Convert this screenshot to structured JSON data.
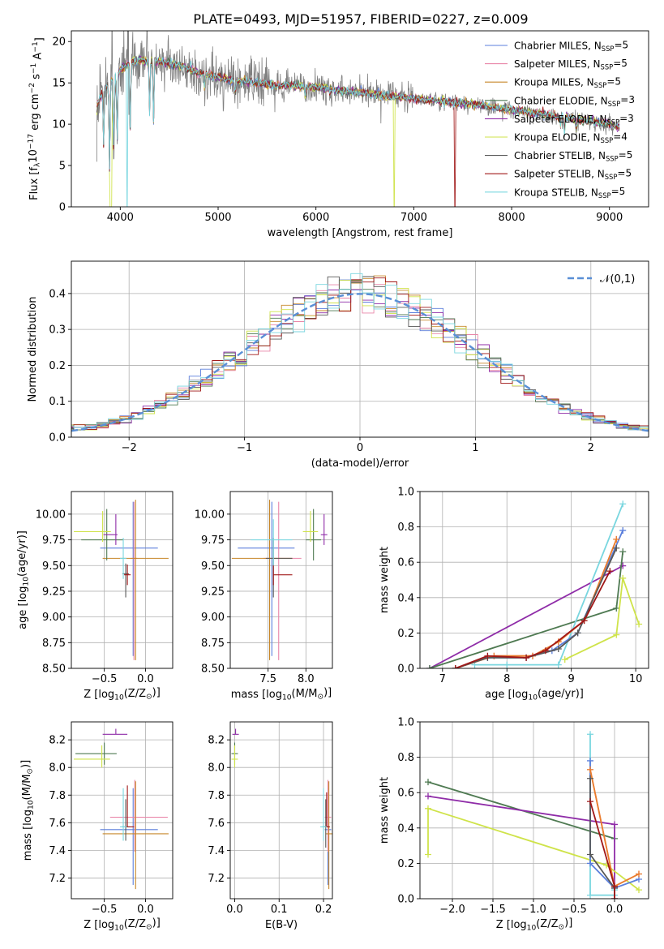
{
  "figure": {
    "title": "PLATE=0493, MJD=51957, FIBERID=0227, z=0.009"
  },
  "colors": {
    "Chabrier MILES": "#5b7fdc",
    "Salpeter MILES": "#e985a8",
    "Kroupa MILES": "#c7872a",
    "Chabrier ELODIE": "#4f7a52",
    "Salpeter ELODIE": "#8f2ca8",
    "Kroupa ELODIE": "#cfe34a",
    "Chabrier STELIB": "#585858",
    "Salpeter STELIB": "#a01818",
    "Kroupa STELIB": "#79d6df",
    "observed": "#808080",
    "gaussian": "#5a8fd6",
    "orange": "#ea7f2c"
  },
  "chart_data": [
    {
      "id": "spectrum",
      "type": "line",
      "xlabel": "wavelength [Angstrom, rest frame]",
      "ylabel": "Flux [f$_\\lambda$10$^{-17}$ erg cm$^{-2}$ s$^{-1}$ A$^{-1}$]",
      "xlim": [
        3500,
        9400
      ],
      "ylim": [
        0,
        21.3
      ],
      "xticks": [
        4000,
        5000,
        6000,
        7000,
        8000,
        9000
      ],
      "yticks": [
        0,
        5,
        10,
        15,
        20
      ],
      "legend_position": "top-right",
      "legend": [
        {
          "model": "Chabrier MILES",
          "n": "5"
        },
        {
          "model": "Salpeter MILES",
          "n": "5"
        },
        {
          "model": "Kroupa MILES",
          "n": "5"
        },
        {
          "model": "Chabrier ELODIE",
          "n": "3"
        },
        {
          "model": "Salpeter ELODIE",
          "n": "3"
        },
        {
          "model": "Kroupa ELODIE",
          "n": "4"
        },
        {
          "model": "Chabrier STELIB",
          "n": "5"
        },
        {
          "model": "Salpeter STELIB",
          "n": "5"
        },
        {
          "model": "Kroupa STELIB",
          "n": "5"
        }
      ],
      "continuum": [
        [
          3760,
          12.0
        ],
        [
          3800,
          13.5
        ],
        [
          3900,
          15.2
        ],
        [
          4000,
          16.6
        ],
        [
          4100,
          17.5
        ],
        [
          4200,
          17.8
        ],
        [
          4300,
          17.6
        ],
        [
          4400,
          17.6
        ],
        [
          4600,
          17.1
        ],
        [
          4800,
          16.2
        ],
        [
          5000,
          15.7
        ],
        [
          5200,
          15.2
        ],
        [
          5400,
          15.0
        ],
        [
          5600,
          14.7
        ],
        [
          5800,
          14.7
        ],
        [
          6000,
          14.5
        ],
        [
          6200,
          14.2
        ],
        [
          6400,
          13.9
        ],
        [
          6600,
          13.6
        ],
        [
          6800,
          13.4
        ],
        [
          7000,
          13.1
        ],
        [
          7200,
          12.9
        ],
        [
          7400,
          12.6
        ],
        [
          7600,
          12.4
        ],
        [
          7800,
          12.1
        ],
        [
          8000,
          11.7
        ],
        [
          8200,
          11.4
        ],
        [
          8400,
          11.1
        ],
        [
          8600,
          10.7
        ],
        [
          8800,
          10.4
        ],
        [
          9000,
          10.0
        ],
        [
          9100,
          9.6
        ]
      ],
      "absorption": [
        [
          3830,
          7.5
        ],
        [
          3890,
          4.5
        ],
        [
          3933,
          5.5
        ],
        [
          3968,
          7.5
        ],
        [
          4102,
          9.0
        ],
        [
          4300,
          11.5
        ],
        [
          4340,
          10.5
        ],
        [
          4861,
          14.6
        ],
        [
          5175,
          13.2
        ],
        [
          5890,
          13.3
        ],
        [
          6563,
          13.5
        ],
        [
          8500,
          10.0
        ],
        [
          8542,
          9.0
        ],
        [
          8662,
          9.2
        ]
      ],
      "dropouts": [
        {
          "model": "Kroupa ELODIE",
          "x": [
            3905,
            6800
          ]
        },
        {
          "model": "Kroupa STELIB",
          "x": [
            4070
          ]
        },
        {
          "model": "Salpeter STELIB",
          "x": [
            7420
          ]
        }
      ]
    },
    {
      "id": "residuals",
      "type": "line",
      "xlabel": "(data-model)/error",
      "ylabel": "Normed distribution",
      "xlim": [
        -2.5,
        2.5
      ],
      "ylim": [
        0,
        0.49
      ],
      "xticks": [
        -2,
        -1,
        0,
        1,
        2
      ],
      "yticks": [
        0.0,
        0.1,
        0.2,
        0.3,
        0.4
      ],
      "legend_position": "top-right",
      "legend": [
        "$\\mathcal{N}(0,1)$"
      ],
      "bin_width": 0.1
    },
    {
      "id": "age-Z",
      "type": "scatter",
      "xlabel": "Z [log$_{10}$(Z/Z$_\\odot$)]",
      "ylabel": "age  [log$_{10}$(age/yr)]",
      "xlim": [
        -0.9,
        0.33
      ],
      "ylim": [
        8.5,
        10.22
      ],
      "xticks": [
        -0.5,
        0.0
      ],
      "yticks": [
        8.5,
        8.75,
        9.0,
        9.25,
        9.5,
        9.75,
        10.0
      ],
      "points": [
        {
          "model": "Chabrier MILES",
          "x": -0.15,
          "xerr": [
            0.4,
            0.3
          ],
          "y": 9.67,
          "yerr": [
            1.05,
            0.45
          ]
        },
        {
          "model": "Salpeter MILES",
          "x": -0.14,
          "y": 9.57,
          "yerr": [
            0.99,
            0.55
          ]
        },
        {
          "model": "Kroupa MILES",
          "x": -0.12,
          "xerr": [
            0.4,
            0.4
          ],
          "y": 9.57,
          "yerr": [
            0.99,
            0.57
          ]
        },
        {
          "model": "Chabrier ELODIE",
          "x": -0.47,
          "xerr": [
            0.31,
            0.2
          ],
          "y": 9.75,
          "yerr": [
            0.2,
            0.3
          ]
        },
        {
          "model": "Salpeter ELODIE",
          "x": -0.36,
          "xerr": [
            0.15,
            0.02
          ],
          "y": 9.8,
          "yerr": [
            0.1,
            0.2
          ]
        },
        {
          "model": "Kroupa ELODIE",
          "x": -0.52,
          "xerr": [
            0.35,
            0.1
          ],
          "y": 9.83,
          "yerr": [
            0.1,
            0.2
          ]
        },
        {
          "model": "Chabrier STELIB",
          "x": -0.24,
          "y": 9.42,
          "yerr": [
            0.23,
            0.1
          ]
        },
        {
          "model": "Salpeter STELIB",
          "x": -0.22,
          "y": 9.41,
          "yerr": [
            0.1,
            0.1
          ]
        },
        {
          "model": "Kroupa STELIB",
          "x": -0.27,
          "y": 9.57,
          "yerr": [
            0.2,
            0.2
          ]
        }
      ]
    },
    {
      "id": "age-mass",
      "type": "scatter",
      "xlabel": "mass [log$_{10}$(M/M$_\\odot$)]",
      "ylabel": "",
      "xlim": [
        7.0,
        8.35
      ],
      "ylim": [
        8.5,
        10.22
      ],
      "xticks": [
        7.5,
        8.0
      ],
      "yticks": [
        8.5,
        8.75,
        9.0,
        9.25,
        9.5,
        9.75,
        10.0
      ],
      "points": [
        {
          "model": "Chabrier MILES",
          "x": 7.55,
          "xerr": [
            0.45,
            0.3
          ],
          "y": 9.67,
          "yerr": [
            1.05,
            0.45
          ]
        },
        {
          "model": "Salpeter MILES",
          "x": 7.64,
          "xerr": [
            0.2,
            0.3
          ],
          "y": 9.57,
          "yerr": [
            0.99,
            0.55
          ]
        },
        {
          "model": "Kroupa MILES",
          "x": 7.52,
          "xerr": [
            0.5,
            0.3
          ],
          "y": 9.57,
          "yerr": [
            0.99,
            0.57
          ]
        },
        {
          "model": "Chabrier ELODIE",
          "x": 8.1,
          "xerr": [
            0.1,
            0.1
          ],
          "y": 9.75,
          "yerr": [
            0.2,
            0.3
          ]
        },
        {
          "model": "Salpeter ELODIE",
          "x": 8.24,
          "y": 9.8,
          "yerr": [
            0.1,
            0.2
          ]
        },
        {
          "model": "Kroupa ELODIE",
          "x": 8.06,
          "xerr": [
            0.1,
            0.1
          ],
          "y": 9.83,
          "yerr": [
            0.1,
            0.2
          ]
        },
        {
          "model": "Chabrier STELIB",
          "x": 7.57,
          "xerr": [
            0.1,
            0.25
          ],
          "y": 9.57,
          "yerr": [
            0.38,
            0.2
          ]
        },
        {
          "model": "Salpeter STELIB",
          "x": 7.57,
          "xerr": [
            0.0,
            0.25
          ],
          "y": 9.41,
          "yerr": [
            0.1,
            0.1
          ]
        },
        {
          "model": "Kroupa STELIB",
          "x": 7.57,
          "xerr": [
            0.3,
            0.25
          ],
          "y": 9.75,
          "yerr": [
            0.25,
            0.2
          ]
        }
      ]
    },
    {
      "id": "weight-age",
      "type": "line",
      "xlabel": "age  [log$_{10}$(age/yr)]",
      "ylabel": "mass weight",
      "xlim": [
        6.65,
        10.2
      ],
      "ylim": [
        0,
        1.0
      ],
      "xticks": [
        7,
        8,
        9,
        10
      ],
      "yticks": [
        0.0,
        0.2,
        0.4,
        0.6,
        0.8,
        1.0
      ],
      "series": [
        {
          "model": "Salpeter ELODIE",
          "x": [
            6.8,
            9.8
          ],
          "y": [
            0.0,
            0.58
          ]
        },
        {
          "model": "Chabrier ELODIE",
          "x": [
            6.8,
            9.7,
            9.8
          ],
          "y": [
            0.0,
            0.34,
            0.66
          ]
        },
        {
          "model": "Kroupa ELODIE",
          "x": [
            8.9,
            9.7,
            9.8,
            10.05
          ],
          "y": [
            0.05,
            0.19,
            0.51,
            0.25
          ]
        },
        {
          "model": "Kroupa STELIB",
          "x": [
            7.5,
            8.0,
            8.8,
            9.8
          ],
          "y": [
            0.02,
            0.02,
            0.02,
            0.93
          ]
        },
        {
          "model": "Chabrier MILES",
          "x": [
            7.2,
            7.7,
            8.3,
            8.7,
            9.1,
            9.8
          ],
          "y": [
            0.0,
            0.06,
            0.06,
            0.1,
            0.2,
            0.78
          ]
        },
        {
          "model": "Salpeter MILES",
          "x": [
            7.2,
            7.8,
            8.4,
            8.8,
            9.2,
            9.7
          ],
          "y": [
            0.0,
            0.07,
            0.07,
            0.15,
            0.27,
            0.73
          ]
        },
        {
          "model": "Kroupa MILES",
          "x": [
            7.2,
            7.8,
            8.4,
            8.8,
            9.2,
            9.7
          ],
          "y": [
            0.0,
            0.07,
            0.07,
            0.15,
            0.27,
            0.73
          ]
        },
        {
          "model": "Chabrier STELIB",
          "x": [
            7.2,
            7.7,
            8.3,
            8.8,
            9.1,
            9.7
          ],
          "y": [
            0.0,
            0.06,
            0.06,
            0.11,
            0.2,
            0.68
          ]
        },
        {
          "model": "Salpeter STELIB",
          "x": [
            7.2,
            7.7,
            8.3,
            8.6,
            9.2,
            9.6
          ],
          "y": [
            0.0,
            0.07,
            0.06,
            0.1,
            0.27,
            0.55
          ]
        }
      ]
    },
    {
      "id": "mass-Z",
      "type": "scatter",
      "xlabel": "Z [log$_{10}$(Z/Z$_\\odot$)]",
      "ylabel": "mass [log$_{10}$(M/M$_\\odot$)]",
      "xlim": [
        -0.9,
        0.33
      ],
      "ylim": [
        7.05,
        8.33
      ],
      "xticks": [
        -0.5,
        0.0
      ],
      "yticks": [
        7.2,
        7.4,
        7.6,
        7.8,
        8.0,
        8.2
      ],
      "points": [
        {
          "model": "Chabrier MILES",
          "x": -0.15,
          "xerr": [
            0.4,
            0.3
          ],
          "y": 7.55,
          "yerr": [
            0.4,
            0.3
          ]
        },
        {
          "model": "Salpeter MILES",
          "x": -0.13,
          "xerr": [
            0.3,
            0.4
          ],
          "y": 7.64,
          "yerr": [
            0.25,
            0.27
          ]
        },
        {
          "model": "Kroupa MILES",
          "x": -0.12,
          "xerr": [
            0.4,
            0.4
          ],
          "y": 7.52,
          "yerr": [
            0.4,
            0.38
          ]
        },
        {
          "model": "Chabrier ELODIE",
          "x": -0.5,
          "xerr": [
            0.35,
            0.15
          ],
          "y": 8.1,
          "yerr": [
            0.08,
            0.08
          ]
        },
        {
          "model": "Salpeter ELODIE",
          "x": -0.36,
          "xerr": [
            0.16,
            0.14
          ],
          "y": 8.24,
          "yerr": [
            0.0,
            0.04
          ]
        },
        {
          "model": "Kroupa ELODIE",
          "x": -0.53,
          "xerr": [
            0.34,
            0.1
          ],
          "y": 8.06,
          "yerr": [
            0.06,
            0.1
          ]
        },
        {
          "model": "Chabrier STELIB",
          "x": -0.24,
          "xerr": [
            0.05,
            0.05
          ],
          "y": 7.57,
          "yerr": [
            0.1,
            0.2
          ]
        },
        {
          "model": "Salpeter STELIB",
          "x": -0.22,
          "xerr": [
            0.0,
            0.08
          ],
          "y": 7.57,
          "yerr": [
            0.0,
            0.3
          ]
        },
        {
          "model": "Kroupa STELIB",
          "x": -0.27,
          "y": 7.57,
          "yerr": [
            0.1,
            0.28
          ]
        }
      ]
    },
    {
      "id": "mass-ebv",
      "type": "scatter",
      "xlabel": "E(B-V)",
      "ylabel": "",
      "xlim": [
        -0.01,
        0.22
      ],
      "ylim": [
        7.05,
        8.33
      ],
      "xticks": [
        0.0,
        0.1,
        0.2
      ],
      "yticks": [
        7.2,
        7.4,
        7.6,
        7.8,
        8.0,
        8.2
      ],
      "points": [
        {
          "model": "Chabrier MILES",
          "x": 0.21,
          "y": 7.55,
          "yerr": [
            0.4,
            0.3
          ]
        },
        {
          "model": "Salpeter MILES",
          "x": 0.21,
          "y": 7.64,
          "yerr": [
            0.25,
            0.27
          ]
        },
        {
          "model": "Kroupa MILES",
          "x": 0.212,
          "y": 7.52,
          "yerr": [
            0.4,
            0.38
          ]
        },
        {
          "model": "Chabrier ELODIE",
          "x": 0.0,
          "y": 8.1,
          "yerr": [
            0.08,
            0.08
          ]
        },
        {
          "model": "Salpeter ELODIE",
          "x": 0.002,
          "y": 8.24,
          "yerr": [
            0.0,
            0.04
          ]
        },
        {
          "model": "Kroupa ELODIE",
          "x": 0.0,
          "y": 8.06,
          "yerr": [
            0.06,
            0.1
          ]
        },
        {
          "model": "Chabrier STELIB",
          "x": 0.205,
          "y": 7.57,
          "yerr": [
            0.15,
            0.2
          ]
        },
        {
          "model": "Salpeter STELIB",
          "x": 0.207,
          "y": 7.57,
          "yerr": [
            0.0,
            0.25
          ]
        },
        {
          "model": "Kroupa STELIB",
          "x": 0.2,
          "y": 7.57,
          "yerr": [
            0.1,
            0.28
          ]
        }
      ]
    },
    {
      "id": "weight-Z",
      "type": "line",
      "xlabel": "Z [log$_{10}$(Z/Z$_\\odot$)]",
      "ylabel": "mass weight",
      "xlim": [
        -2.4,
        0.42
      ],
      "ylim": [
        0,
        1.0
      ],
      "xticks": [
        -2.0,
        -1.5,
        -1.0,
        -0.5,
        0.0
      ],
      "yticks": [
        0.0,
        0.2,
        0.4,
        0.6,
        0.8,
        1.0
      ],
      "series": [
        {
          "model": "Chabrier ELODIE",
          "x": [
            -2.3,
            0.0
          ],
          "y": [
            0.66,
            0.34
          ]
        },
        {
          "model": "Salpeter ELODIE",
          "x": [
            -2.3,
            0.0,
            0.0
          ],
          "y": [
            0.58,
            0.42,
            0.0
          ]
        },
        {
          "model": "Kroupa ELODIE",
          "x": [
            -2.3,
            -2.3,
            -0.1,
            0.3
          ],
          "y": [
            0.25,
            0.51,
            0.19,
            0.05
          ]
        },
        {
          "model": "Kroupa STELIB",
          "x": [
            -0.3,
            -0.3,
            0.0,
            0.0
          ],
          "y": [
            0.93,
            0.02,
            0.02,
            0.05
          ]
        },
        {
          "model": "Chabrier MILES",
          "x": [
            -0.3,
            -0.3,
            0.0,
            0.3
          ],
          "y": [
            0.78,
            0.2,
            0.06,
            0.11
          ]
        },
        {
          "model": "Salpeter MILES",
          "x": [
            -0.3,
            0.0,
            0.3
          ],
          "y": [
            0.73,
            0.07,
            0.14
          ]
        },
        {
          "model": "Kroupa MILES",
          "x": [
            -0.3,
            0.0,
            0.3
          ],
          "y": [
            0.73,
            0.07,
            0.14
          ]
        },
        {
          "model": "Chabrier STELIB",
          "x": [
            -0.3,
            -0.3,
            0.0,
            0.0
          ],
          "y": [
            0.68,
            0.25,
            0.06,
            0.0
          ]
        },
        {
          "model": "Salpeter STELIB",
          "x": [
            -0.3,
            0.0,
            0.0
          ],
          "y": [
            0.55,
            0.07,
            0.0
          ]
        }
      ]
    }
  ]
}
